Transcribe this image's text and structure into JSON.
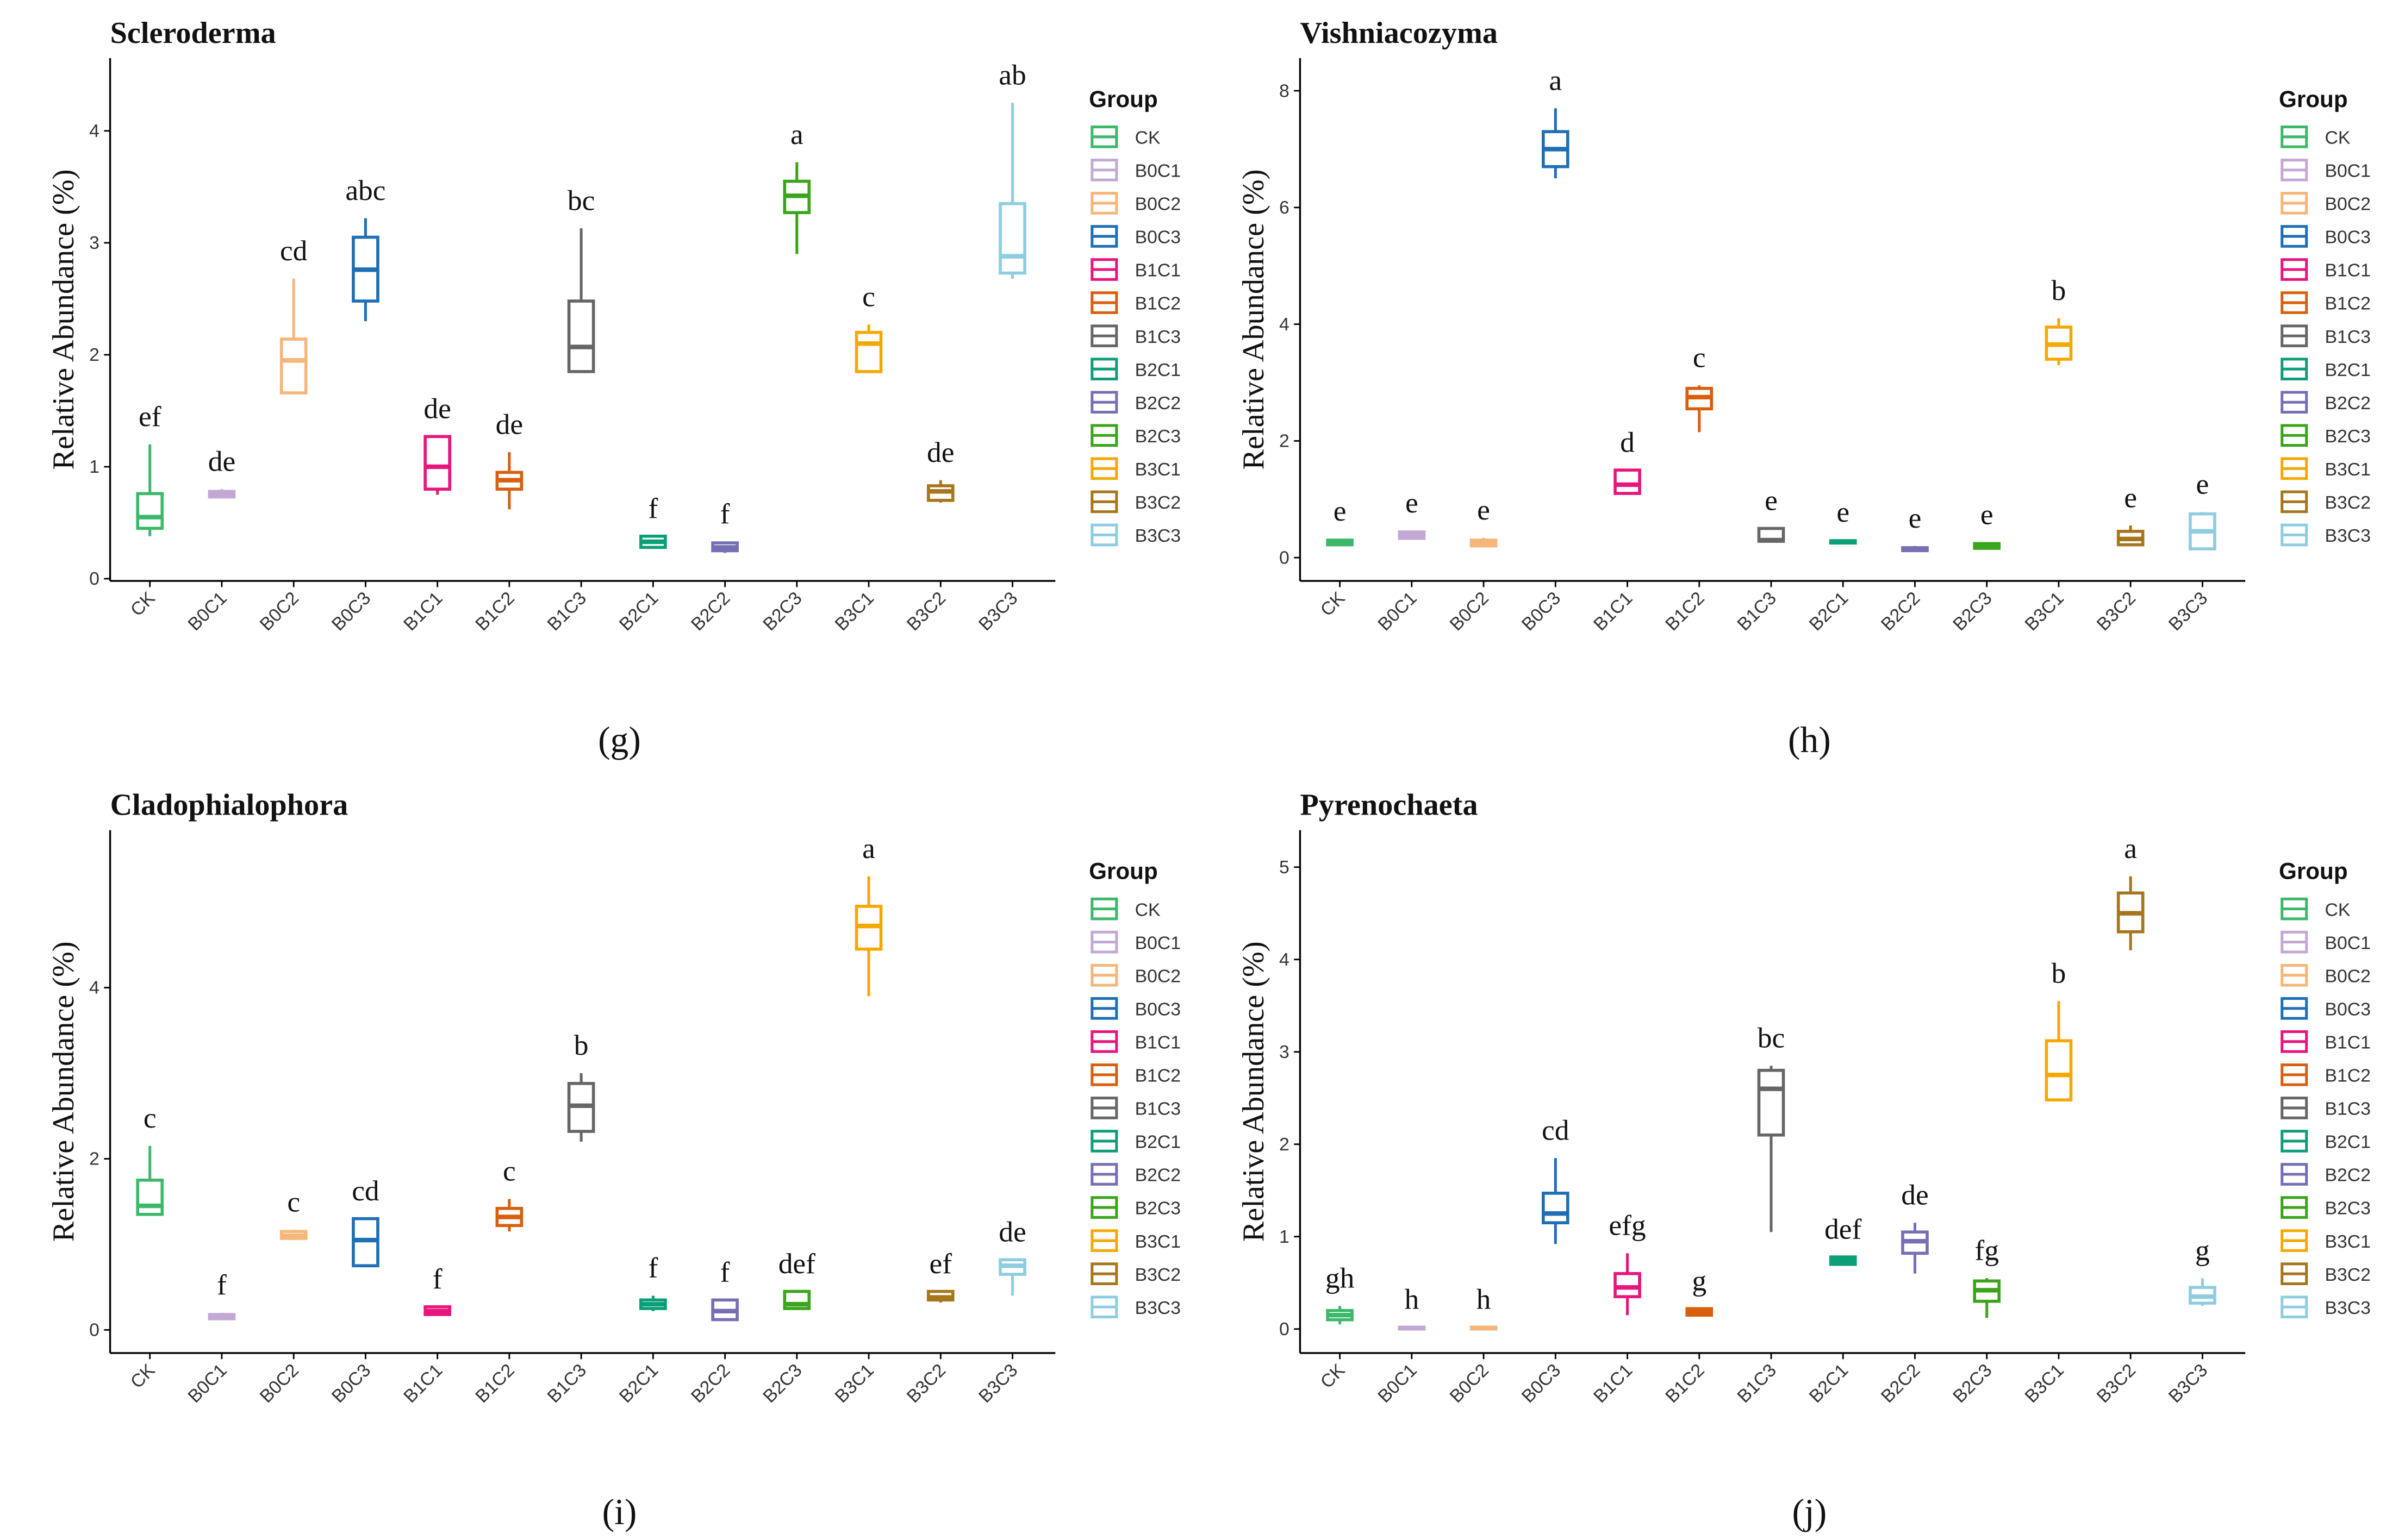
{
  "chart_data": [
    {
      "type": "box",
      "title": "Scleroderma",
      "ylabel": "Relative Abundance (%)",
      "legend_title": "Group",
      "panel_label": "(g)",
      "categories": [
        "CK",
        "B0C1",
        "B0C2",
        "B0C3",
        "B1C1",
        "B1C2",
        "B1C3",
        "B2C1",
        "B2C2",
        "B2C3",
        "B3C1",
        "B3C2",
        "B3C3"
      ],
      "colors": [
        "#3cb86a",
        "#c3a8d6",
        "#f5b67a",
        "#1f6fb5",
        "#e8157c",
        "#d95f0e",
        "#666666",
        "#0c9e77",
        "#7570b3",
        "#3aa41a",
        "#f5a800",
        "#a6761d",
        "#8ecde0"
      ],
      "boxes": [
        {
          "min": 0.38,
          "q1": 0.45,
          "median": 0.55,
          "q3": 0.76,
          "max": 1.2
        },
        {
          "min": 0.72,
          "q1": 0.73,
          "median": 0.75,
          "q3": 0.78,
          "max": 0.8
        },
        {
          "min": 1.66,
          "q1": 1.66,
          "median": 1.95,
          "q3": 2.14,
          "max": 2.68
        },
        {
          "min": 2.3,
          "q1": 2.48,
          "median": 2.76,
          "q3": 3.05,
          "max": 3.22
        },
        {
          "min": 0.75,
          "q1": 0.8,
          "median": 1.0,
          "q3": 1.27,
          "max": 1.27
        },
        {
          "min": 0.62,
          "q1": 0.8,
          "median": 0.88,
          "q3": 0.95,
          "max": 1.13
        },
        {
          "min": 1.85,
          "q1": 1.85,
          "median": 2.07,
          "q3": 2.48,
          "max": 3.13
        },
        {
          "min": 0.27,
          "q1": 0.28,
          "median": 0.33,
          "q3": 0.38,
          "max": 0.38
        },
        {
          "min": 0.23,
          "q1": 0.25,
          "median": 0.28,
          "q3": 0.32,
          "max": 0.33
        },
        {
          "min": 2.9,
          "q1": 3.27,
          "median": 3.42,
          "q3": 3.55,
          "max": 3.72
        },
        {
          "min": 1.85,
          "q1": 1.85,
          "median": 2.1,
          "q3": 2.2,
          "max": 2.27
        },
        {
          "min": 0.68,
          "q1": 0.7,
          "median": 0.78,
          "q3": 0.83,
          "max": 0.88
        },
        {
          "min": 2.68,
          "q1": 2.73,
          "median": 2.88,
          "q3": 3.35,
          "max": 4.25
        }
      ],
      "letters": [
        "ef",
        "de",
        "cd",
        "abc",
        "de",
        "de",
        "bc",
        "f",
        "f",
        "a",
        "c",
        "de",
        "ab"
      ],
      "ylim": [
        -0.02,
        4.65
      ],
      "yticks": [
        0,
        1,
        2,
        3,
        4
      ]
    },
    {
      "type": "box",
      "title": "Vishniacozyma",
      "ylabel": "Relative Abundance (%)",
      "legend_title": "Group",
      "panel_label": "(h)",
      "categories": [
        "CK",
        "B0C1",
        "B0C2",
        "B0C3",
        "B1C1",
        "B1C2",
        "B1C3",
        "B2C1",
        "B2C2",
        "B2C3",
        "B3C1",
        "B3C2",
        "B3C3"
      ],
      "colors": [
        "#3cb86a",
        "#c3a8d6",
        "#f5b67a",
        "#1f6fb5",
        "#e8157c",
        "#d95f0e",
        "#666666",
        "#0c9e77",
        "#7570b3",
        "#3aa41a",
        "#f5a800",
        "#a6761d",
        "#8ecde0"
      ],
      "boxes": [
        {
          "min": 0.2,
          "q1": 0.22,
          "median": 0.26,
          "q3": 0.3,
          "max": 0.32
        },
        {
          "min": 0.32,
          "q1": 0.33,
          "median": 0.38,
          "q3": 0.44,
          "max": 0.46
        },
        {
          "min": 0.18,
          "q1": 0.2,
          "median": 0.26,
          "q3": 0.3,
          "max": 0.34
        },
        {
          "min": 6.5,
          "q1": 6.7,
          "median": 7.0,
          "q3": 7.3,
          "max": 7.7
        },
        {
          "min": 1.1,
          "q1": 1.1,
          "median": 1.25,
          "q3": 1.5,
          "max": 1.5
        },
        {
          "min": 2.15,
          "q1": 2.55,
          "median": 2.75,
          "q3": 2.9,
          "max": 2.95
        },
        {
          "min": 0.28,
          "q1": 0.28,
          "median": 0.3,
          "q3": 0.5,
          "max": 0.5
        },
        {
          "min": 0.24,
          "q1": 0.25,
          "median": 0.27,
          "q3": 0.29,
          "max": 0.3
        },
        {
          "min": 0.1,
          "q1": 0.12,
          "median": 0.14,
          "q3": 0.17,
          "max": 0.2
        },
        {
          "min": 0.15,
          "q1": 0.16,
          "median": 0.2,
          "q3": 0.24,
          "max": 0.26
        },
        {
          "min": 3.3,
          "q1": 3.4,
          "median": 3.65,
          "q3": 3.95,
          "max": 4.1
        },
        {
          "min": 0.2,
          "q1": 0.22,
          "median": 0.32,
          "q3": 0.45,
          "max": 0.55
        },
        {
          "min": 0.15,
          "q1": 0.15,
          "median": 0.45,
          "q3": 0.75,
          "max": 0.78
        }
      ],
      "letters": [
        "e",
        "e",
        "e",
        "a",
        "d",
        "c",
        "e",
        "e",
        "e",
        "e",
        "b",
        "e",
        "e"
      ],
      "ylim": [
        -0.4,
        8.56
      ],
      "yticks": [
        0,
        2,
        4,
        6,
        8
      ]
    },
    {
      "type": "box",
      "title": "Cladophialophora",
      "ylabel": "Relative Abundance (%)",
      "legend_title": "Group",
      "panel_label": "(i)",
      "categories": [
        "CK",
        "B0C1",
        "B0C2",
        "B0C3",
        "B1C1",
        "B1C2",
        "B1C3",
        "B2C1",
        "B2C2",
        "B2C3",
        "B3C1",
        "B3C2",
        "B3C3"
      ],
      "colors": [
        "#3cb86a",
        "#c3a8d6",
        "#f5b67a",
        "#1f6fb5",
        "#e8157c",
        "#d95f0e",
        "#666666",
        "#0c9e77",
        "#7570b3",
        "#3aa41a",
        "#f5a800",
        "#a6761d",
        "#8ecde0"
      ],
      "boxes": [
        {
          "min": 1.35,
          "q1": 1.35,
          "median": 1.45,
          "q3": 1.75,
          "max": 2.15
        },
        {
          "min": 0.12,
          "q1": 0.13,
          "median": 0.15,
          "q3": 0.18,
          "max": 0.2
        },
        {
          "min": 1.05,
          "q1": 1.07,
          "median": 1.1,
          "q3": 1.15,
          "max": 1.17
        },
        {
          "min": 0.75,
          "q1": 0.75,
          "median": 1.05,
          "q3": 1.3,
          "max": 1.3
        },
        {
          "min": 0.18,
          "q1": 0.18,
          "median": 0.22,
          "q3": 0.27,
          "max": 0.27
        },
        {
          "min": 1.15,
          "q1": 1.22,
          "median": 1.32,
          "q3": 1.42,
          "max": 1.53
        },
        {
          "min": 2.2,
          "q1": 2.32,
          "median": 2.62,
          "q3": 2.88,
          "max": 3.0
        },
        {
          "min": 0.22,
          "q1": 0.25,
          "median": 0.3,
          "q3": 0.35,
          "max": 0.4
        },
        {
          "min": 0.12,
          "q1": 0.12,
          "median": 0.22,
          "q3": 0.35,
          "max": 0.35
        },
        {
          "min": 0.25,
          "q1": 0.25,
          "median": 0.3,
          "q3": 0.45,
          "max": 0.45
        },
        {
          "min": 3.9,
          "q1": 4.45,
          "median": 4.72,
          "q3": 4.95,
          "max": 5.3
        },
        {
          "min": 0.32,
          "q1": 0.35,
          "median": 0.38,
          "q3": 0.45,
          "max": 0.45
        },
        {
          "min": 0.4,
          "q1": 0.65,
          "median": 0.75,
          "q3": 0.82,
          "max": 0.82
        }
      ],
      "letters": [
        "c",
        "f",
        "c",
        "cd",
        "f",
        "c",
        "b",
        "f",
        "f",
        "def",
        "a",
        "ef",
        "de"
      ],
      "ylim": [
        -0.27,
        5.84
      ],
      "yticks": [
        0,
        2,
        4
      ]
    },
    {
      "type": "box",
      "title": "Pyrenochaeta",
      "ylabel": "Relative Abundance (%)",
      "legend_title": "Group",
      "panel_label": "(j)",
      "categories": [
        "CK",
        "B0C1",
        "B0C2",
        "B0C3",
        "B1C1",
        "B1C2",
        "B1C3",
        "B2C1",
        "B2C2",
        "B2C3",
        "B3C1",
        "B3C2",
        "B3C3"
      ],
      "colors": [
        "#3cb86a",
        "#c3a8d6",
        "#f5b67a",
        "#1f6fb5",
        "#e8157c",
        "#d95f0e",
        "#666666",
        "#0c9e77",
        "#7570b3",
        "#3aa41a",
        "#f5a800",
        "#a6761d",
        "#8ecde0"
      ],
      "boxes": [
        {
          "min": 0.05,
          "q1": 0.1,
          "median": 0.15,
          "q3": 0.2,
          "max": 0.25
        },
        {
          "min": 0,
          "q1": 0,
          "median": 0.01,
          "q3": 0.02,
          "max": 0.02
        },
        {
          "min": 0,
          "q1": 0,
          "median": 0.01,
          "q3": 0.02,
          "max": 0.02
        },
        {
          "min": 0.92,
          "q1": 1.15,
          "median": 1.25,
          "q3": 1.47,
          "max": 1.85
        },
        {
          "min": 0.15,
          "q1": 0.35,
          "median": 0.45,
          "q3": 0.6,
          "max": 0.82
        },
        {
          "min": 0.15,
          "q1": 0.15,
          "median": 0.18,
          "q3": 0.22,
          "max": 0.22
        },
        {
          "min": 1.05,
          "q1": 2.1,
          "median": 2.6,
          "q3": 2.8,
          "max": 2.85
        },
        {
          "min": 0.7,
          "q1": 0.7,
          "median": 0.74,
          "q3": 0.78,
          "max": 0.78
        },
        {
          "min": 0.6,
          "q1": 0.82,
          "median": 0.95,
          "q3": 1.05,
          "max": 1.15
        },
        {
          "min": 0.12,
          "q1": 0.3,
          "median": 0.42,
          "q3": 0.52,
          "max": 0.55
        },
        {
          "min": 2.48,
          "q1": 2.48,
          "median": 2.75,
          "q3": 3.12,
          "max": 3.55
        },
        {
          "min": 4.1,
          "q1": 4.3,
          "median": 4.5,
          "q3": 4.72,
          "max": 4.9
        },
        {
          "min": 0.25,
          "q1": 0.28,
          "median": 0.35,
          "q3": 0.45,
          "max": 0.55
        }
      ],
      "letters": [
        "gh",
        "h",
        "h",
        "cd",
        "efg",
        "g",
        "bc",
        "def",
        "de",
        "fg",
        "b",
        "a",
        "g"
      ],
      "ylim": [
        -0.26,
        5.4
      ],
      "yticks": [
        0,
        1,
        2,
        3,
        4,
        5
      ]
    }
  ]
}
